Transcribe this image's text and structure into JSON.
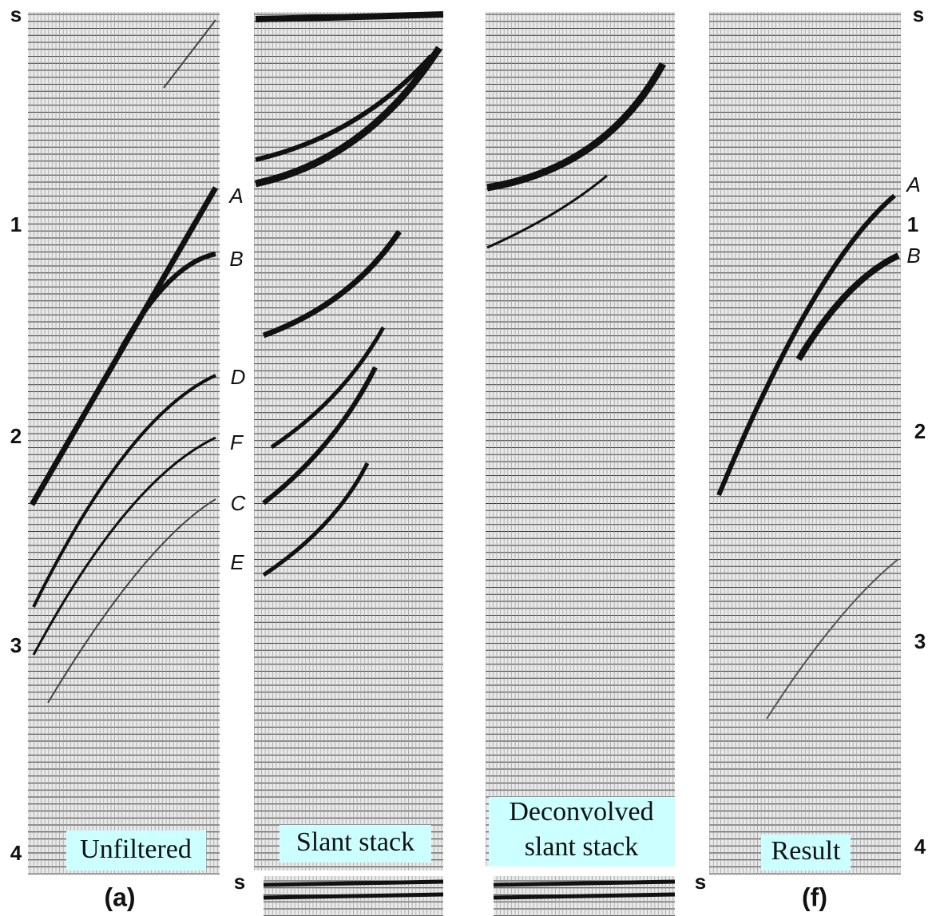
{
  "axis_left": {
    "unit": "s",
    "ticks": [
      "1",
      "2",
      "3",
      "4"
    ]
  },
  "axis_right": {
    "unit": "s",
    "ticks": [
      "2",
      "3",
      "4"
    ]
  },
  "panels": [
    {
      "caption": [
        "Unfiltered"
      ],
      "letter": "(a)",
      "events": [
        "A",
        "B",
        "D",
        "F",
        "C",
        "E"
      ]
    },
    {
      "caption": [
        "Slant stack"
      ]
    },
    {
      "caption": [
        "Deconvolved",
        "slant stack"
      ]
    },
    {
      "caption": [
        "Result"
      ],
      "letter": "(f)",
      "events": [
        "A",
        "1",
        "B"
      ]
    }
  ],
  "bottom_axis": {
    "left_unit": "s",
    "right_unit": "s"
  }
}
